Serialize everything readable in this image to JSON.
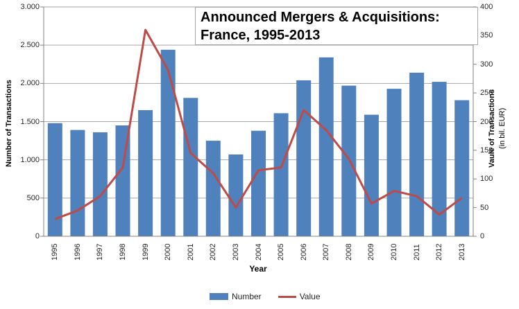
{
  "title": {
    "line1": "Announced Mergers & Acquisitions:",
    "line2": "France, 1995-2013"
  },
  "axes": {
    "left": {
      "label": "Number of Transactions",
      "ticks": [
        "3.000",
        "2.500",
        "2.000",
        "1.500",
        "1.000",
        "500",
        "0"
      ]
    },
    "right": {
      "label_line1": "Vaule of Transactions",
      "label_line2": "(in bil. EUR)",
      "ticks": [
        "400",
        "350",
        "300",
        "250",
        "200",
        "150",
        "100",
        "50",
        "0"
      ]
    },
    "x": {
      "label": "Year"
    }
  },
  "legend": [
    {
      "label": "Number",
      "swatch": "bar"
    },
    {
      "label": "Value",
      "swatch": "line"
    }
  ],
  "colors": {
    "bar": "#4F81BD",
    "line": "#BE4B48",
    "grid": "#A6A6A6",
    "axis": "#808080",
    "text": "#262626"
  },
  "chart_data": {
    "type": "bar",
    "title": "Announced Mergers & Acquisitions: France, 1995-2013",
    "xlabel": "Year",
    "ylabel_left": "Number of Transactions",
    "ylabel_right": "Vaule of Transactions (in bil. EUR)",
    "categories": [
      "1995",
      "1996",
      "1997",
      "1998",
      "1999",
      "2000",
      "2001",
      "2002",
      "2003",
      "2004",
      "2005",
      "2006",
      "2007",
      "2008",
      "2009",
      "2010",
      "2011",
      "2012",
      "2013"
    ],
    "series": [
      {
        "name": "Number",
        "type": "bar",
        "axis": "left",
        "values": [
          1480,
          1390,
          1360,
          1450,
          1650,
          2440,
          1810,
          1250,
          1070,
          1380,
          1610,
          2040,
          2340,
          1970,
          1590,
          1930,
          2140,
          2020,
          1780
        ]
      },
      {
        "name": "Value",
        "type": "line",
        "axis": "right",
        "values": [
          30,
          45,
          70,
          120,
          360,
          290,
          145,
          110,
          50,
          115,
          120,
          220,
          185,
          135,
          57,
          79,
          70,
          38,
          67
        ]
      }
    ],
    "ylim_left": [
      0,
      3000
    ],
    "ylim_right": [
      0,
      400
    ],
    "left_tick_step": 500,
    "right_tick_step": 50,
    "grid": true,
    "legend_position": "bottom"
  }
}
